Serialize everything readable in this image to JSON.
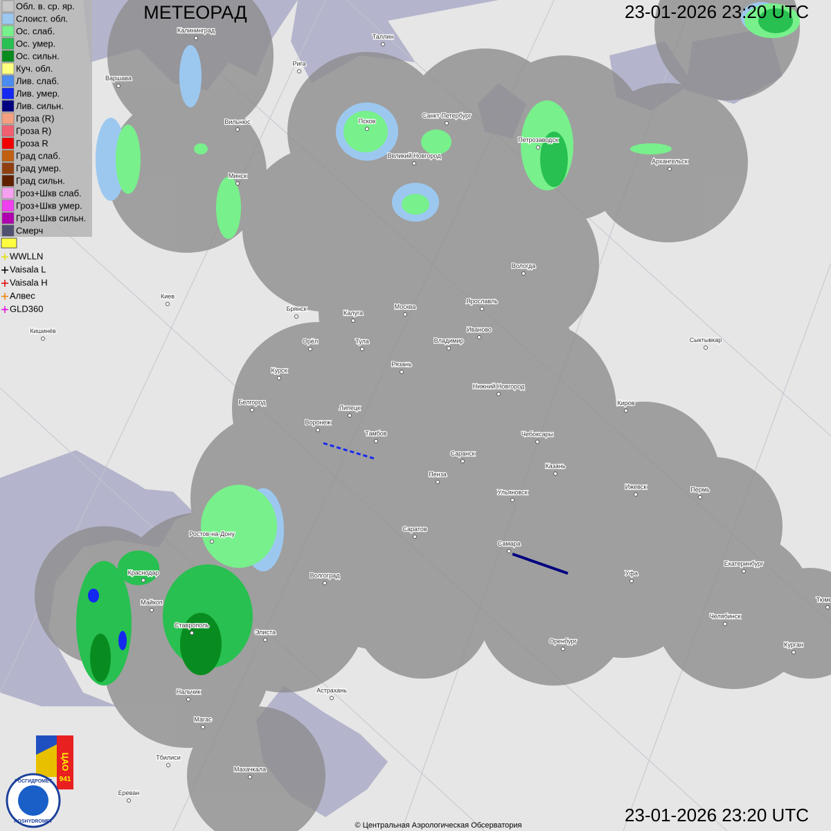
{
  "header": {
    "title": "МЕТЕОРАД",
    "datetime": "23-01-2026  23:20 UTC"
  },
  "footer": {
    "datetime": "23-01-2026  23:20 UTC",
    "copyright": "© Центральная Аэрологическая Обсерватория"
  },
  "legend": {
    "items": [
      {
        "label": "Обл. в. ср. яр.",
        "color": "#c8c8c8"
      },
      {
        "label": "Слоист. обл.",
        "color": "#9cc8f0"
      },
      {
        "label": "Ос. слаб.",
        "color": "#78f08c"
      },
      {
        "label": "Ос. умер.",
        "color": "#28c050"
      },
      {
        "label": "Ос. сильн.",
        "color": "#088c20"
      },
      {
        "label": "Куч. обл.",
        "color": "#ffff80"
      },
      {
        "label": "Лив. слаб.",
        "color": "#4c8cf0"
      },
      {
        "label": "Лив. умер.",
        "color": "#1428f0"
      },
      {
        "label": "Лив. сильн.",
        "color": "#000080"
      },
      {
        "label": "Гроза (R)",
        "color": "#f4a080"
      },
      {
        "label": "Гроза R)",
        "color": "#f06070"
      },
      {
        "label": "Гроза R",
        "color": "#f00000"
      },
      {
        "label": "Град слаб.",
        "color": "#c06010"
      },
      {
        "label": "Град умер.",
        "color": "#904010"
      },
      {
        "label": "Град сильн.",
        "color": "#602000"
      },
      {
        "label": "Гроз+Шкв слаб.",
        "color": "#f8a0f0"
      },
      {
        "label": "Гроз+Шкв умер.",
        "color": "#f040f0"
      },
      {
        "label": "Гроз+Шкв сильн.",
        "color": "#b000b0"
      },
      {
        "label": "Смерч",
        "color": "#505070"
      }
    ]
  },
  "lightning": {
    "items": [
      {
        "label": "WWLLN",
        "color": "#e0e000"
      },
      {
        "label": "Vaisala L",
        "color": "#000000"
      },
      {
        "label": "Vaisala H",
        "color": "#e00000"
      },
      {
        "label": "Алвес",
        "color": "#f08000"
      },
      {
        "label": "GLD360",
        "color": "#e000e0"
      }
    ]
  },
  "cities": [
    "Калининград",
    "Варшава",
    "Рига",
    "Таллин",
    "Вильнюс",
    "Псков",
    "Санкт-Петербург",
    "Петрозаводск",
    "Архангельск",
    "Великий Новгород",
    "Минск",
    "Вологда",
    "Киев",
    "Брянск",
    "Калуга",
    "Москва",
    "Ярославль",
    "Иваново",
    "Кишинёв",
    "Орёл",
    "Тула",
    "Владимир",
    "Сыктывкар",
    "Рязань",
    "Курск",
    "Нижний Новгород",
    "Белгород",
    "Киров",
    "Липецк",
    "Воронеж",
    "Тамбов",
    "Чебоксары",
    "Саранск",
    "Казань",
    "Пенза",
    "Ижевск",
    "Пермь",
    "Ульяновск",
    "Ростов-на-Дону",
    "Саратов",
    "Самара",
    "Екатеринбург",
    "Краснодар",
    "Уфа",
    "Волгоград",
    "Майкоп",
    "Челябинск",
    "Ставрополь",
    "Элиста",
    "Оренбург",
    "Курган",
    "Тюмень",
    "Астрахань",
    "Нальчик",
    "Магас",
    "Тбилиси",
    "Махачкала",
    "Ереван"
  ],
  "logo": {
    "org": "ЦАО",
    "number": "941",
    "ru": "РОСГИДРОМЕТ",
    "en": "ROSHYDROMET"
  }
}
